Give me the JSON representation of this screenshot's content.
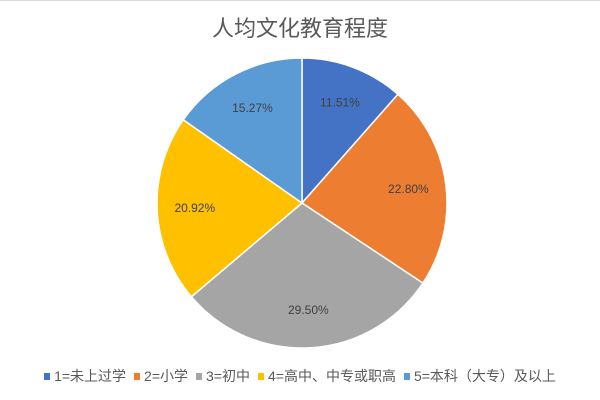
{
  "chart_data": {
    "type": "pie",
    "title": "人均文化教育程度",
    "categories": [
      "1=未上过学",
      "2=小学",
      "3=初中",
      "4=高中、中专或职高",
      "5=本科（大专）及以上"
    ],
    "values": [
      11.51,
      22.8,
      29.5,
      20.92,
      15.27
    ],
    "labels": [
      "11.51%",
      "22.80%",
      "29.50%",
      "20.92%",
      "15.27%"
    ],
    "colors": [
      "#4472c4",
      "#ed7d31",
      "#a5a5a5",
      "#ffc000",
      "#5b9bd5"
    ],
    "start": "12 o'clock, clockwise",
    "legend_position": "bottom"
  }
}
